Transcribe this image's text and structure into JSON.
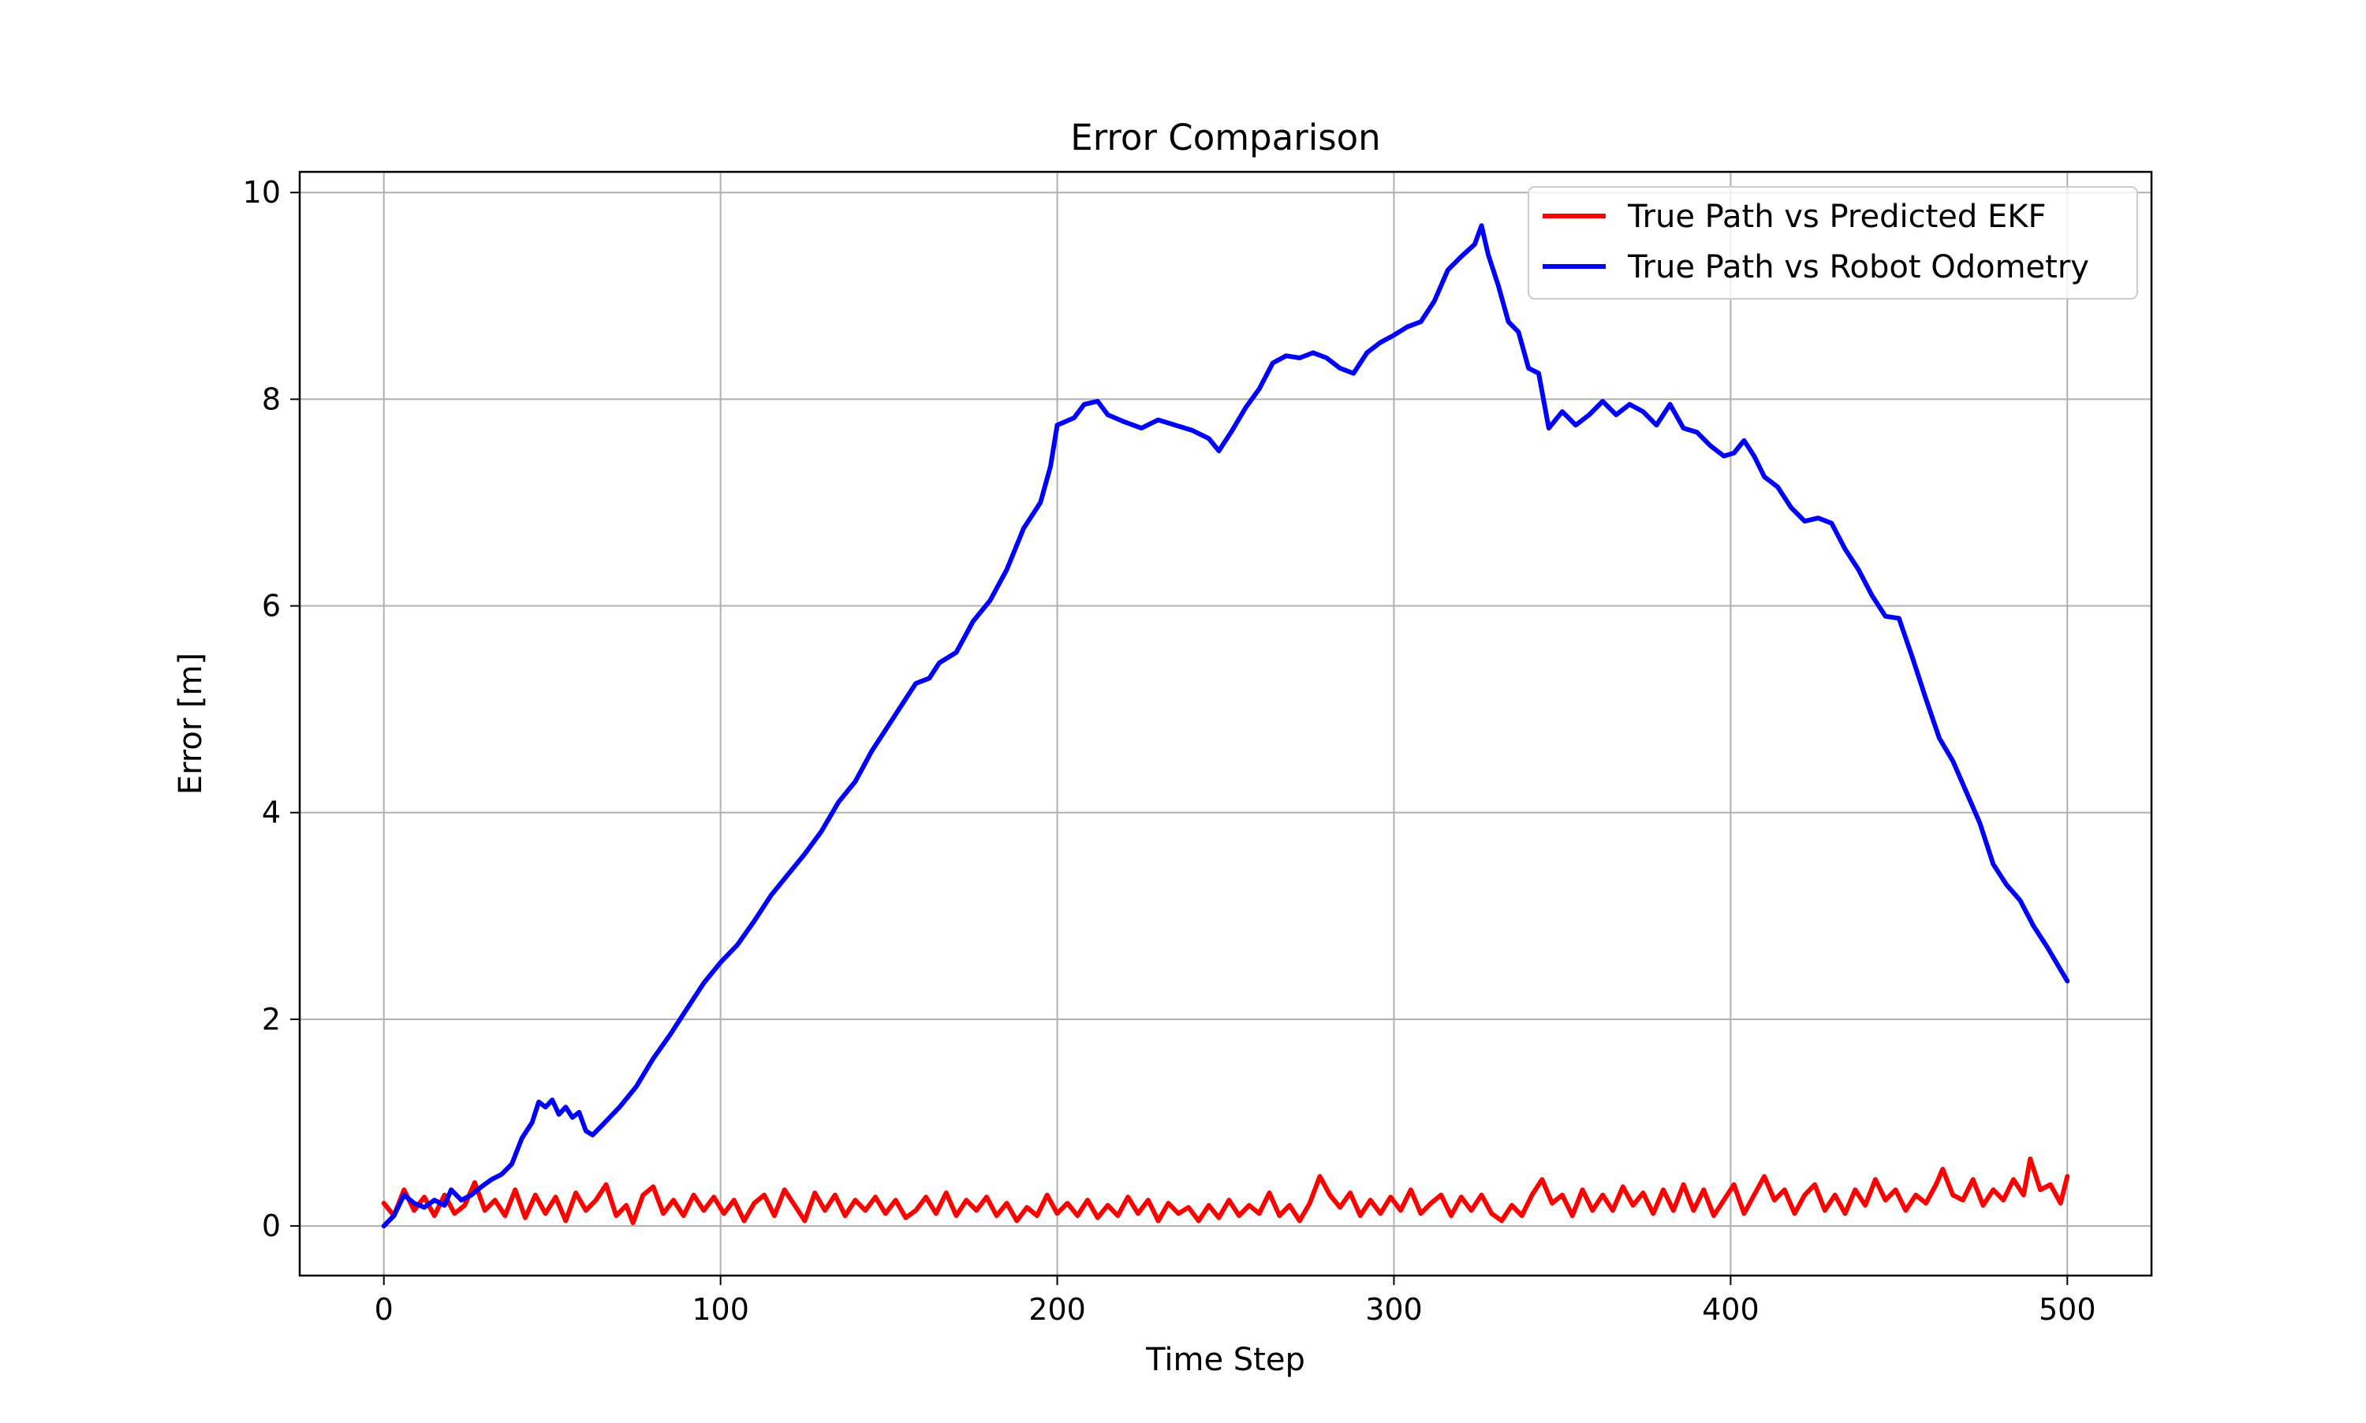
{
  "chart_data": {
    "type": "line",
    "title": "Error Comparison",
    "xlabel": "Time Step",
    "ylabel": "Error [m]",
    "xlim": [
      -25,
      525
    ],
    "ylim": [
      -0.48,
      10.2
    ],
    "xticks": [
      0,
      100,
      200,
      300,
      400,
      500
    ],
    "yticks": [
      0,
      2,
      4,
      6,
      8,
      10
    ],
    "grid": true,
    "legend_position": "top-right",
    "series": [
      {
        "name": "True Path vs Predicted EKF",
        "color": "#ff0000",
        "points": [
          [
            0,
            0.22
          ],
          [
            3,
            0.1
          ],
          [
            6,
            0.35
          ],
          [
            9,
            0.15
          ],
          [
            12,
            0.28
          ],
          [
            15,
            0.1
          ],
          [
            18,
            0.3
          ],
          [
            21,
            0.12
          ],
          [
            24,
            0.2
          ],
          [
            27,
            0.42
          ],
          [
            30,
            0.15
          ],
          [
            33,
            0.25
          ],
          [
            36,
            0.1
          ],
          [
            39,
            0.35
          ],
          [
            42,
            0.08
          ],
          [
            45,
            0.3
          ],
          [
            48,
            0.12
          ],
          [
            51,
            0.28
          ],
          [
            54,
            0.05
          ],
          [
            57,
            0.32
          ],
          [
            60,
            0.15
          ],
          [
            63,
            0.25
          ],
          [
            66,
            0.4
          ],
          [
            69,
            0.1
          ],
          [
            72,
            0.2
          ],
          [
            74,
            0.03
          ],
          [
            77,
            0.3
          ],
          [
            80,
            0.38
          ],
          [
            83,
            0.12
          ],
          [
            86,
            0.25
          ],
          [
            89,
            0.1
          ],
          [
            92,
            0.3
          ],
          [
            95,
            0.15
          ],
          [
            98,
            0.28
          ],
          [
            101,
            0.12
          ],
          [
            104,
            0.25
          ],
          [
            107,
            0.05
          ],
          [
            110,
            0.22
          ],
          [
            113,
            0.3
          ],
          [
            116,
            0.1
          ],
          [
            119,
            0.35
          ],
          [
            122,
            0.2
          ],
          [
            125,
            0.05
          ],
          [
            128,
            0.32
          ],
          [
            131,
            0.15
          ],
          [
            134,
            0.3
          ],
          [
            137,
            0.1
          ],
          [
            140,
            0.25
          ],
          [
            143,
            0.15
          ],
          [
            146,
            0.28
          ],
          [
            149,
            0.12
          ],
          [
            152,
            0.25
          ],
          [
            155,
            0.08
          ],
          [
            158,
            0.15
          ],
          [
            161,
            0.28
          ],
          [
            164,
            0.12
          ],
          [
            167,
            0.32
          ],
          [
            170,
            0.1
          ],
          [
            173,
            0.25
          ],
          [
            176,
            0.15
          ],
          [
            179,
            0.28
          ],
          [
            182,
            0.1
          ],
          [
            185,
            0.22
          ],
          [
            188,
            0.05
          ],
          [
            191,
            0.18
          ],
          [
            194,
            0.1
          ],
          [
            197,
            0.3
          ],
          [
            200,
            0.12
          ],
          [
            203,
            0.22
          ],
          [
            206,
            0.1
          ],
          [
            209,
            0.25
          ],
          [
            212,
            0.08
          ],
          [
            215,
            0.2
          ],
          [
            218,
            0.1
          ],
          [
            221,
            0.28
          ],
          [
            224,
            0.12
          ],
          [
            227,
            0.25
          ],
          [
            230,
            0.05
          ],
          [
            233,
            0.22
          ],
          [
            236,
            0.12
          ],
          [
            239,
            0.18
          ],
          [
            242,
            0.05
          ],
          [
            245,
            0.2
          ],
          [
            248,
            0.08
          ],
          [
            251,
            0.25
          ],
          [
            254,
            0.1
          ],
          [
            257,
            0.2
          ],
          [
            260,
            0.12
          ],
          [
            263,
            0.32
          ],
          [
            266,
            0.1
          ],
          [
            269,
            0.2
          ],
          [
            272,
            0.05
          ],
          [
            275,
            0.22
          ],
          [
            278,
            0.48
          ],
          [
            281,
            0.3
          ],
          [
            284,
            0.18
          ],
          [
            287,
            0.32
          ],
          [
            290,
            0.1
          ],
          [
            293,
            0.25
          ],
          [
            296,
            0.12
          ],
          [
            299,
            0.28
          ],
          [
            302,
            0.15
          ],
          [
            305,
            0.35
          ],
          [
            308,
            0.12
          ],
          [
            311,
            0.22
          ],
          [
            314,
            0.3
          ],
          [
            317,
            0.1
          ],
          [
            320,
            0.28
          ],
          [
            323,
            0.15
          ],
          [
            326,
            0.3
          ],
          [
            329,
            0.12
          ],
          [
            332,
            0.05
          ],
          [
            335,
            0.2
          ],
          [
            338,
            0.1
          ],
          [
            341,
            0.3
          ],
          [
            344,
            0.45
          ],
          [
            347,
            0.22
          ],
          [
            350,
            0.3
          ],
          [
            353,
            0.1
          ],
          [
            356,
            0.35
          ],
          [
            359,
            0.15
          ],
          [
            362,
            0.3
          ],
          [
            365,
            0.15
          ],
          [
            368,
            0.38
          ],
          [
            371,
            0.2
          ],
          [
            374,
            0.32
          ],
          [
            377,
            0.12
          ],
          [
            380,
            0.35
          ],
          [
            383,
            0.15
          ],
          [
            386,
            0.4
          ],
          [
            389,
            0.15
          ],
          [
            392,
            0.35
          ],
          [
            395,
            0.1
          ],
          [
            398,
            0.25
          ],
          [
            401,
            0.4
          ],
          [
            404,
            0.12
          ],
          [
            407,
            0.3
          ],
          [
            410,
            0.48
          ],
          [
            413,
            0.25
          ],
          [
            416,
            0.35
          ],
          [
            419,
            0.12
          ],
          [
            422,
            0.3
          ],
          [
            425,
            0.4
          ],
          [
            428,
            0.15
          ],
          [
            431,
            0.3
          ],
          [
            434,
            0.12
          ],
          [
            437,
            0.35
          ],
          [
            440,
            0.2
          ],
          [
            443,
            0.45
          ],
          [
            446,
            0.25
          ],
          [
            449,
            0.35
          ],
          [
            452,
            0.15
          ],
          [
            455,
            0.3
          ],
          [
            458,
            0.22
          ],
          [
            461,
            0.4
          ],
          [
            463,
            0.55
          ],
          [
            466,
            0.3
          ],
          [
            469,
            0.25
          ],
          [
            472,
            0.45
          ],
          [
            475,
            0.2
          ],
          [
            478,
            0.35
          ],
          [
            481,
            0.25
          ],
          [
            484,
            0.45
          ],
          [
            487,
            0.3
          ],
          [
            489,
            0.65
          ],
          [
            492,
            0.35
          ],
          [
            495,
            0.4
          ],
          [
            498,
            0.22
          ],
          [
            500,
            0.48
          ]
        ]
      },
      {
        "name": "True Path vs Robot Odometry",
        "color": "#0000ff",
        "points": [
          [
            0,
            0.0
          ],
          [
            3,
            0.1
          ],
          [
            6,
            0.3
          ],
          [
            9,
            0.22
          ],
          [
            12,
            0.18
          ],
          [
            15,
            0.25
          ],
          [
            18,
            0.2
          ],
          [
            20,
            0.35
          ],
          [
            23,
            0.25
          ],
          [
            26,
            0.3
          ],
          [
            29,
            0.38
          ],
          [
            32,
            0.45
          ],
          [
            35,
            0.5
          ],
          [
            38,
            0.6
          ],
          [
            41,
            0.85
          ],
          [
            44,
            1.0
          ],
          [
            46,
            1.2
          ],
          [
            48,
            1.15
          ],
          [
            50,
            1.22
          ],
          [
            52,
            1.08
          ],
          [
            54,
            1.15
          ],
          [
            56,
            1.05
          ],
          [
            58,
            1.1
          ],
          [
            60,
            0.92
          ],
          [
            62,
            0.88
          ],
          [
            65,
            0.98
          ],
          [
            70,
            1.15
          ],
          [
            75,
            1.35
          ],
          [
            80,
            1.62
          ],
          [
            85,
            1.85
          ],
          [
            90,
            2.1
          ],
          [
            95,
            2.35
          ],
          [
            100,
            2.55
          ],
          [
            105,
            2.72
          ],
          [
            110,
            2.95
          ],
          [
            115,
            3.2
          ],
          [
            120,
            3.4
          ],
          [
            125,
            3.6
          ],
          [
            130,
            3.82
          ],
          [
            135,
            4.1
          ],
          [
            140,
            4.3
          ],
          [
            145,
            4.6
          ],
          [
            150,
            4.85
          ],
          [
            155,
            5.1
          ],
          [
            158,
            5.25
          ],
          [
            162,
            5.3
          ],
          [
            165,
            5.45
          ],
          [
            170,
            5.55
          ],
          [
            175,
            5.85
          ],
          [
            180,
            6.05
          ],
          [
            185,
            6.35
          ],
          [
            190,
            6.75
          ],
          [
            195,
            7.0
          ],
          [
            198,
            7.35
          ],
          [
            200,
            7.75
          ],
          [
            205,
            7.82
          ],
          [
            208,
            7.95
          ],
          [
            212,
            7.98
          ],
          [
            215,
            7.85
          ],
          [
            220,
            7.78
          ],
          [
            225,
            7.72
          ],
          [
            230,
            7.8
          ],
          [
            235,
            7.75
          ],
          [
            240,
            7.7
          ],
          [
            245,
            7.62
          ],
          [
            248,
            7.5
          ],
          [
            252,
            7.7
          ],
          [
            256,
            7.92
          ],
          [
            260,
            8.1
          ],
          [
            264,
            8.35
          ],
          [
            268,
            8.42
          ],
          [
            272,
            8.4
          ],
          [
            276,
            8.45
          ],
          [
            280,
            8.4
          ],
          [
            284,
            8.3
          ],
          [
            288,
            8.25
          ],
          [
            292,
            8.45
          ],
          [
            296,
            8.55
          ],
          [
            300,
            8.62
          ],
          [
            304,
            8.7
          ],
          [
            308,
            8.75
          ],
          [
            312,
            8.95
          ],
          [
            316,
            9.25
          ],
          [
            320,
            9.38
          ],
          [
            324,
            9.5
          ],
          [
            326,
            9.68
          ],
          [
            328,
            9.4
          ],
          [
            331,
            9.1
          ],
          [
            334,
            8.75
          ],
          [
            337,
            8.65
          ],
          [
            340,
            8.3
          ],
          [
            343,
            8.25
          ],
          [
            346,
            7.72
          ],
          [
            350,
            7.88
          ],
          [
            354,
            7.75
          ],
          [
            358,
            7.85
          ],
          [
            362,
            7.98
          ],
          [
            366,
            7.85
          ],
          [
            370,
            7.95
          ],
          [
            374,
            7.88
          ],
          [
            378,
            7.75
          ],
          [
            382,
            7.95
          ],
          [
            386,
            7.72
          ],
          [
            390,
            7.68
          ],
          [
            394,
            7.55
          ],
          [
            398,
            7.45
          ],
          [
            401,
            7.48
          ],
          [
            404,
            7.6
          ],
          [
            407,
            7.45
          ],
          [
            410,
            7.25
          ],
          [
            414,
            7.15
          ],
          [
            418,
            6.95
          ],
          [
            422,
            6.82
          ],
          [
            426,
            6.85
          ],
          [
            430,
            6.8
          ],
          [
            434,
            6.55
          ],
          [
            438,
            6.35
          ],
          [
            442,
            6.1
          ],
          [
            446,
            5.9
          ],
          [
            450,
            5.88
          ],
          [
            454,
            5.5
          ],
          [
            458,
            5.1
          ],
          [
            462,
            4.72
          ],
          [
            466,
            4.5
          ],
          [
            470,
            4.2
          ],
          [
            474,
            3.9
          ],
          [
            478,
            3.5
          ],
          [
            482,
            3.3
          ],
          [
            486,
            3.15
          ],
          [
            490,
            2.9
          ],
          [
            494,
            2.7
          ],
          [
            498,
            2.48
          ],
          [
            500,
            2.37
          ]
        ]
      }
    ]
  }
}
